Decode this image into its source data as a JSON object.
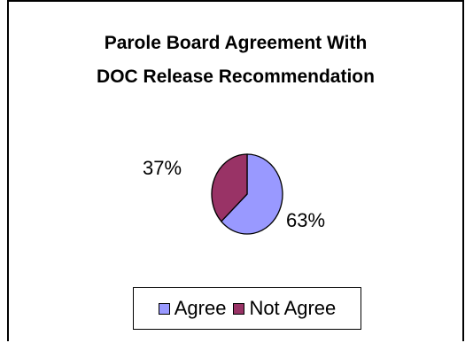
{
  "chart_data": {
    "type": "pie",
    "title_lines": [
      "Parole Board Agreement With",
      "DOC Release Recommendation"
    ],
    "slices": [
      {
        "label": "Agree",
        "value": 63,
        "display": "63%",
        "color": "#9999ff"
      },
      {
        "label": "Not Agree",
        "value": 37,
        "display": "37%",
        "color": "#993366"
      }
    ],
    "legend_position": "bottom",
    "edge_color": "#000000"
  }
}
